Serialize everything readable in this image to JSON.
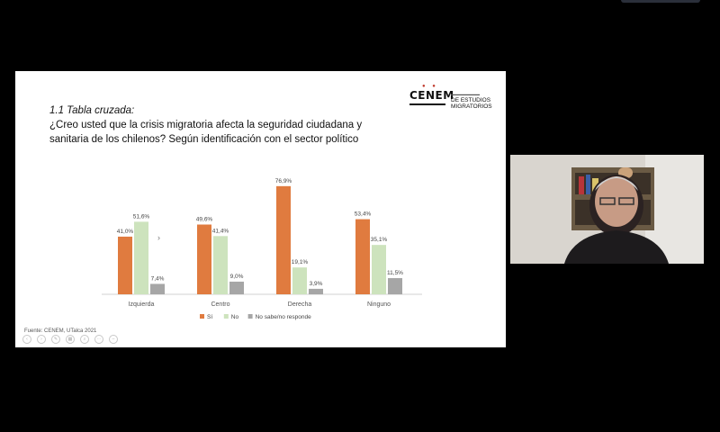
{
  "slide": {
    "heading": "1.1 Tabla cruzada:",
    "question_line1": "¿Creo usted que la crisis migratoria afecta la seguridad ciudadana y",
    "question_line2": "sanitaria de los chilenos? Según identificación con el sector político",
    "logo_mark": "CENEM",
    "logo_line1": "DE ESTUDIOS",
    "logo_line2": "MIGRATORIOS",
    "source_note": "Fuente: CENEM, UTalca 2021"
  },
  "controls": [
    {
      "icon": "chevron-left-icon"
    },
    {
      "icon": "chevron-right-icon"
    },
    {
      "icon": "pen-icon"
    },
    {
      "icon": "slides-grid-icon"
    },
    {
      "icon": "zoom-icon"
    },
    {
      "icon": "more-icon"
    },
    {
      "icon": "minus-icon"
    }
  ],
  "chart_data": {
    "type": "bar",
    "categories": [
      "Izquierda",
      "Centro",
      "Derecha",
      "Ninguno"
    ],
    "series": [
      {
        "name": "Sí",
        "color": "#e07b3f",
        "values": [
          41.0,
          49.6,
          76.9,
          53.4
        ],
        "labels": [
          "41,0%",
          "49,6%",
          "76,9%",
          "53,4%"
        ]
      },
      {
        "name": "No",
        "color": "#cde3bd",
        "values": [
          51.6,
          41.4,
          19.1,
          35.1
        ],
        "labels": [
          "51,6%",
          "41,4%",
          "19,1%",
          "35,1%"
        ]
      },
      {
        "name": "No sabe/no responde",
        "color": "#a6a6a6",
        "values": [
          7.4,
          9.0,
          3.9,
          11.5
        ],
        "labels": [
          "7,4%",
          "9,0%",
          "3,9%",
          "11,5%"
        ]
      }
    ],
    "ylim": [
      0,
      80
    ],
    "grid": false,
    "legend_position": "bottom"
  }
}
